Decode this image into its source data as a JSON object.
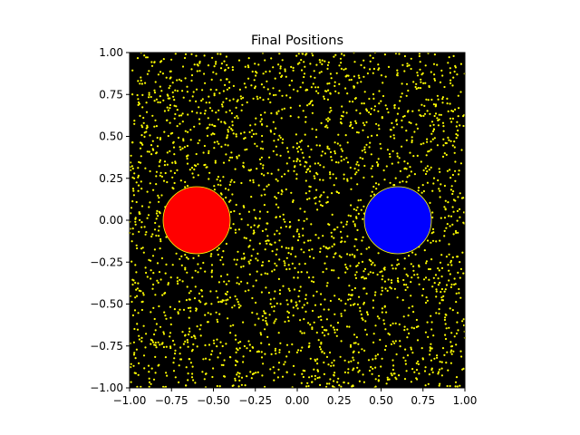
{
  "chart_data": {
    "type": "scatter",
    "title": "Final Positions",
    "xlabel": "",
    "ylabel": "",
    "xlim": [
      -1.0,
      1.0
    ],
    "ylim": [
      -1.0,
      1.0
    ],
    "x_ticks": [
      -1.0,
      -0.75,
      -0.5,
      -0.25,
      0.0,
      0.25,
      0.5,
      0.75,
      1.0
    ],
    "x_tick_labels": [
      "−1.00",
      "−0.75",
      "−0.50",
      "−0.25",
      "0.00",
      "0.25",
      "0.50",
      "0.75",
      "1.00"
    ],
    "y_ticks": [
      1.0,
      0.75,
      0.5,
      0.25,
      0.0,
      -0.25,
      -0.5,
      -0.75,
      -1.0
    ],
    "y_tick_labels": [
      "1.00",
      "0.75",
      "0.50",
      "0.25",
      "0.00",
      "−0.25",
      "−0.50",
      "−0.75",
      "−1.00"
    ],
    "grid": false,
    "legend": "none",
    "background_color": "#000000",
    "particle_color": "#ffff00",
    "particle_count_approx": 2500,
    "particle_distribution": "uniform over plot area, excluding circles",
    "circles": [
      {
        "name": "red-disc",
        "center": [
          -0.6,
          0.0
        ],
        "radius": 0.2,
        "color": "#ff0000"
      },
      {
        "name": "blue-disc",
        "center": [
          0.6,
          0.0
        ],
        "radius": 0.2,
        "color": "#0000ff"
      }
    ]
  }
}
